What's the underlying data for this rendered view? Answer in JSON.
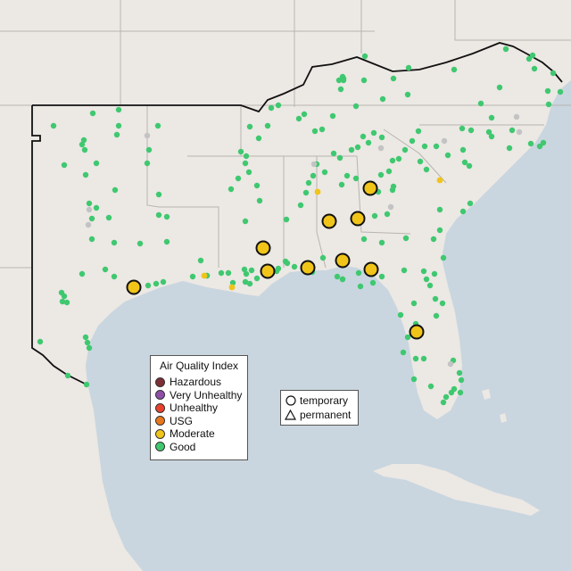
{
  "legend": {
    "title": "Air Quality Index",
    "categories": [
      {
        "label": "Hazardous",
        "color": "#7e2e35"
      },
      {
        "label": "Very Unhealthy",
        "color": "#8f4fa8"
      },
      {
        "label": "Unhealthy",
        "color": "#e8412c"
      },
      {
        "label": "USG",
        "color": "#e8771c"
      },
      {
        "label": "Moderate",
        "color": "#f0c419"
      },
      {
        "label": "Good",
        "color": "#3fc870"
      }
    ]
  },
  "monitor_types": [
    {
      "label": "temporary",
      "shape": "circle"
    },
    {
      "label": "permanent",
      "shape": "triangle"
    }
  ],
  "colors": {
    "water": "#c9d6df",
    "land": "#ece8e4",
    "state_border": "#b8b4b0",
    "region_outline": "#111111",
    "no_data": "#c3c3c3"
  }
}
